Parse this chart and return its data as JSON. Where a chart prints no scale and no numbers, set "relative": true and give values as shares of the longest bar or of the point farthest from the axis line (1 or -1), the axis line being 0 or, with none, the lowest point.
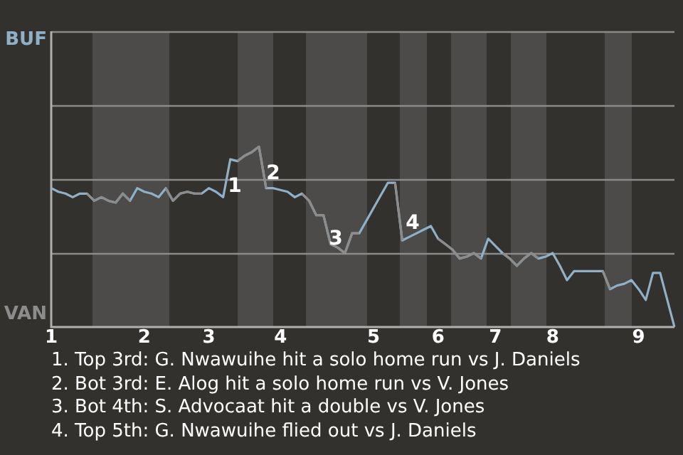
{
  "chart_data": {
    "type": "line",
    "relative": true,
    "categories": [
      "1",
      null,
      null,
      null,
      null,
      null,
      null,
      null,
      null,
      null,
      null,
      null,
      null,
      "2",
      null,
      null,
      null,
      null,
      null,
      null,
      null,
      null,
      "3",
      null,
      null,
      null,
      null,
      null,
      null,
      null,
      null,
      null,
      "4",
      null,
      null,
      null,
      null,
      null,
      null,
      null,
      null,
      null,
      null,
      null,
      null,
      "5",
      null,
      null,
      null,
      null,
      null,
      null,
      null,
      null,
      "6",
      null,
      null,
      null,
      null,
      null,
      null,
      null,
      "7",
      null,
      null,
      null,
      null,
      null,
      null,
      null,
      "8",
      null,
      null,
      null,
      null,
      null,
      null,
      null,
      null,
      null,
      null,
      null,
      "9",
      null,
      null,
      null,
      null,
      null
    ],
    "series": [
      {
        "color": "#8fb0c6",
        "values": [
          0.77,
          0.75,
          0.74,
          0.72,
          0.74,
          0.74,
          0.7,
          0.72,
          0.7,
          0.69,
          0.74,
          0.7,
          0.77,
          0.75,
          0.74,
          0.72,
          0.77,
          0.7,
          0.74,
          0.75,
          0.74,
          0.74,
          0.77,
          0.75,
          0.72,
          0.93,
          0.92,
          0.95,
          0.97,
          1,
          0.77,
          0.77,
          0.76,
          0.75,
          0.72,
          0.74,
          0.7,
          0.62,
          0.62,
          0.46,
          0.44,
          0.41,
          0.52,
          0.52,
          0.59,
          0.66,
          0.73,
          0.8,
          0.8,
          0.48,
          0.5,
          0.52,
          0.54,
          0.56,
          0.49,
          0.46,
          0.43,
          0.38,
          0.39,
          0.41,
          0.38,
          0.49,
          0.45,
          0.41,
          0.38,
          0.34,
          0.38,
          0.41,
          0.38,
          0.39,
          0.41,
          0.34,
          0.26,
          0.31,
          0.31,
          0.31,
          0.31,
          0.31,
          0.21,
          0.23,
          0.24,
          0.26,
          0.21,
          0.15,
          0.3,
          0.3,
          0.15,
          0
        ]
      },
      {
        "color": "#8c8c8c",
        "values": [
          null,
          null,
          null,
          null,
          null,
          0.74,
          0.7,
          0.72,
          0.7,
          0.69,
          0.74,
          0.7,
          null,
          null,
          null,
          null,
          0.77,
          0.7,
          0.74,
          0.75,
          0.74,
          0.74,
          null,
          null,
          null,
          null,
          0.92,
          0.95,
          0.97,
          1,
          0.77,
          null,
          null,
          null,
          null,
          0.74,
          0.7,
          0.62,
          0.62,
          0.46,
          0.44,
          0.41,
          0.52,
          0.52,
          null,
          null,
          null,
          null,
          0.8,
          0.48,
          null,
          null,
          null,
          null,
          0.49,
          0.46,
          0.43,
          0.38,
          0.39,
          0.41,
          0.38,
          null,
          null,
          0.41,
          0.38,
          0.34,
          0.38,
          0.41,
          0.38,
          null,
          null,
          null,
          null,
          null,
          null,
          null,
          null,
          0.31,
          0.21,
          null,
          null,
          null,
          null,
          null,
          null,
          null,
          null,
          null
        ]
      }
    ],
    "ref_lines": [
      {
        "axis": "y",
        "value": 0.41,
        "color": "#8a8a8a"
      },
      {
        "axis": "y",
        "value": 0.82,
        "color": "#8a8a8a"
      },
      {
        "axis": "y",
        "value": 1.23,
        "color": "#8a8a8a"
      },
      {
        "axis": "y",
        "value": 1.64,
        "color": "#8a8a8a"
      }
    ],
    "annotations": [
      "BUF",
      "VAN",
      "1",
      "2",
      "3",
      "4",
      "1. Top 3rd: G. Nwawuihe hit a solo home run vs J. Daniels",
      "2. Bot 3rd: E. Alog hit a solo home run vs V. Jones",
      "3. Bot 4th: S. Advocaat hit a double vs V. Jones",
      "4. Top 5th: G. Nwawuihe flied out vs J. Daniels"
    ]
  }
}
